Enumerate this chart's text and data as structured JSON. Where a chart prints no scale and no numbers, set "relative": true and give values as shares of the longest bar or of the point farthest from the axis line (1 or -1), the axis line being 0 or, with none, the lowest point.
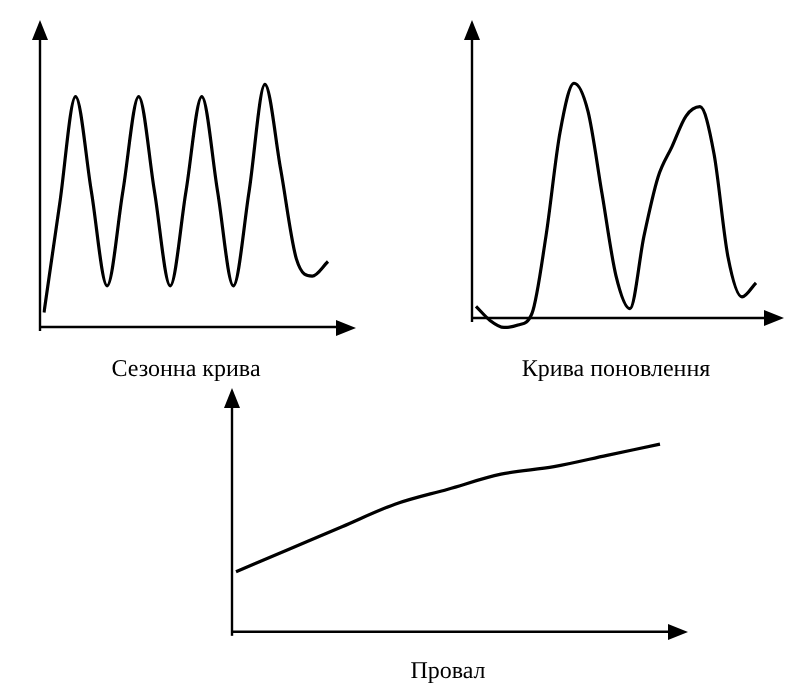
{
  "chart_data": [
    {
      "type": "line",
      "relative": true,
      "xlabel": "Сезонна крива",
      "categories": [
        null,
        null,
        null,
        null,
        null,
        null,
        null,
        null,
        null,
        null,
        null,
        null,
        null,
        null,
        null,
        null,
        null,
        null,
        null
      ],
      "values": [
        0.06,
        0.51,
        0.95,
        0.56,
        0.17,
        0.56,
        0.95,
        0.56,
        0.17,
        0.56,
        0.95,
        0.56,
        0.17,
        0.56,
        1,
        0.65,
        0.28,
        0.21,
        0.27
      ],
      "color": "#000000",
      "marker": "none",
      "line_style": "solid"
    },
    {
      "type": "line",
      "relative": true,
      "xlabel": "Крива поновлення",
      "categories": [
        null,
        null,
        null,
        null,
        null,
        null,
        null,
        null,
        null,
        null,
        null,
        null,
        null,
        null,
        null,
        null,
        null,
        null,
        null,
        null,
        null
      ],
      "values": [
        0.05,
        -0.01,
        -0.04,
        -0.03,
        0.02,
        0.35,
        0.79,
        1,
        0.88,
        0.53,
        0.18,
        0.04,
        0.35,
        0.6,
        0.73,
        0.86,
        0.9,
        0.7,
        0.26,
        0.09,
        0.15
      ],
      "color": "#000000",
      "marker": "none",
      "line_style": "solid"
    },
    {
      "type": "line",
      "relative": true,
      "xlabel": "Провал",
      "categories": [
        null,
        null,
        null,
        null,
        null,
        null,
        null,
        null,
        null
      ],
      "values": [
        0.32,
        0.44,
        0.56,
        0.68,
        0.76,
        0.84,
        0.88,
        0.94,
        1
      ],
      "color": "#000000",
      "marker": "none",
      "line_style": "solid"
    }
  ]
}
